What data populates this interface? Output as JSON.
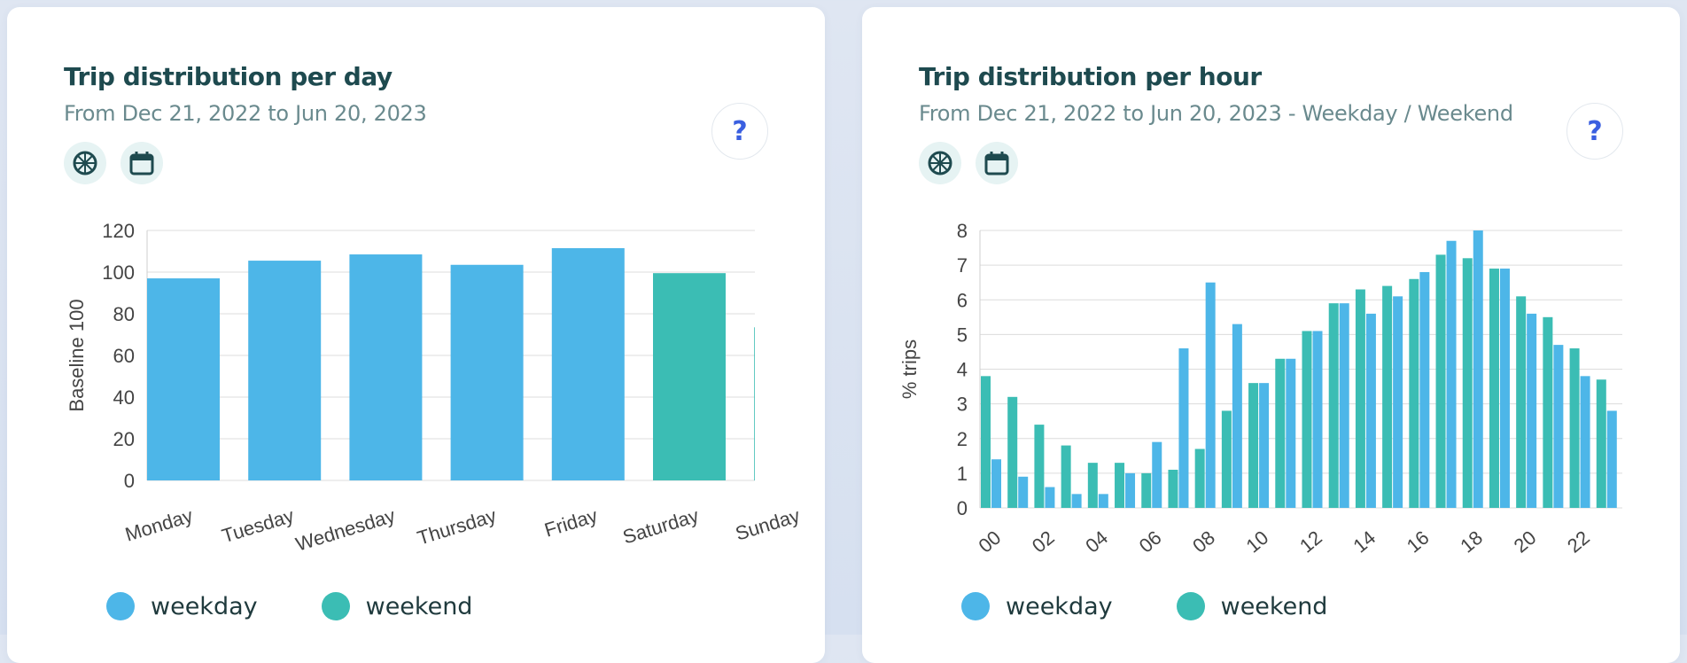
{
  "colors": {
    "weekday": "#4db6e8",
    "weekend": "#3bbdb4"
  },
  "cards": [
    {
      "title": "Trip distribution per day",
      "subtitle": "From Dec 21, 2022 to Jun 20, 2023",
      "help_label": "?",
      "icons": [
        "wheel-icon",
        "calendar-icon"
      ],
      "legend": [
        "weekday",
        "weekend"
      ]
    },
    {
      "title": "Trip distribution per hour",
      "subtitle": "From Dec 21, 2022 to Jun 20, 2023 - Weekday / Weekend",
      "help_label": "?",
      "icons": [
        "wheel-icon",
        "calendar-icon"
      ],
      "legend": [
        "weekday",
        "weekend"
      ]
    }
  ],
  "chart_data": [
    {
      "type": "bar",
      "categories": [
        "Monday",
        "Tuesday",
        "Wednesday",
        "Thursday",
        "Friday",
        "Saturday",
        "Sunday"
      ],
      "values": [
        97,
        105.5,
        108.5,
        103.5,
        111.5,
        99.5,
        73.5
      ],
      "bar_series": [
        "weekday",
        "weekday",
        "weekday",
        "weekday",
        "weekday",
        "weekend",
        "weekend"
      ],
      "ylabel": "Baseline 100",
      "ylim": [
        0,
        120
      ],
      "yticks": [
        0,
        20,
        40,
        60,
        80,
        100,
        120
      ],
      "grid": true,
      "legend_position": "bottom-left"
    },
    {
      "type": "bar",
      "x": [
        "00",
        "01",
        "02",
        "03",
        "04",
        "05",
        "06",
        "07",
        "08",
        "09",
        "10",
        "11",
        "12",
        "13",
        "14",
        "15",
        "16",
        "17",
        "18",
        "19",
        "20",
        "21",
        "22",
        "23"
      ],
      "xtick_labels": [
        "00",
        "02",
        "04",
        "06",
        "08",
        "10",
        "12",
        "14",
        "16",
        "18",
        "20",
        "22"
      ],
      "series": [
        {
          "name": "weekend",
          "values": [
            3.8,
            3.2,
            2.4,
            1.8,
            1.3,
            1.3,
            1.0,
            1.1,
            1.7,
            2.8,
            3.6,
            4.3,
            5.1,
            5.9,
            6.3,
            6.4,
            6.6,
            7.3,
            7.2,
            6.9,
            6.1,
            5.5,
            4.6,
            3.7
          ]
        },
        {
          "name": "weekday",
          "values": [
            1.4,
            0.9,
            0.6,
            0.4,
            0.4,
            1.0,
            1.9,
            4.6,
            6.5,
            5.3,
            3.6,
            4.3,
            5.1,
            5.9,
            5.6,
            6.1,
            6.8,
            7.7,
            8.0,
            6.9,
            5.6,
            4.7,
            3.8,
            2.8
          ]
        }
      ],
      "ylabel": "% trips",
      "ylim": [
        0,
        8
      ],
      "yticks": [
        0,
        1,
        2,
        3,
        4,
        5,
        6,
        7,
        8
      ],
      "grid": true,
      "legend_position": "bottom-left"
    }
  ]
}
